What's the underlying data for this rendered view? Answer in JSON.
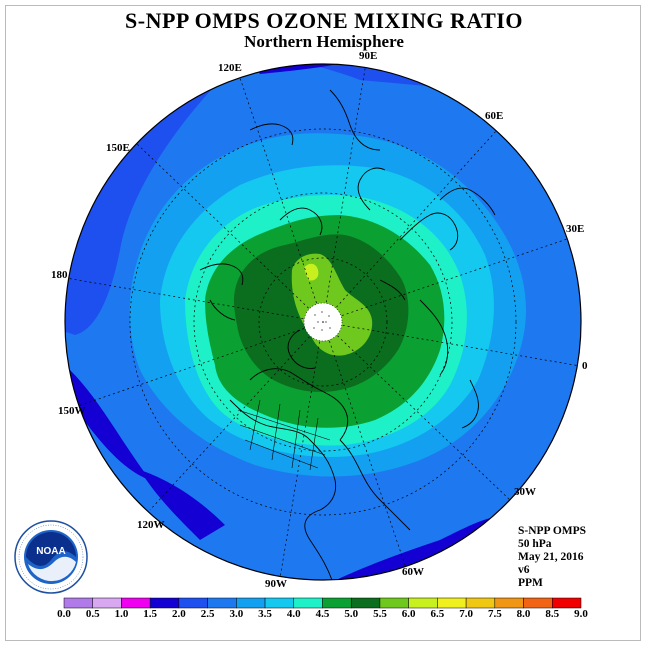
{
  "title": "S-NPP OMPS OZONE MIXING RATIO",
  "subtitle": "Northern Hemisphere",
  "longitude_labels": [
    "90E",
    "60E",
    "30E",
    "0",
    "30W",
    "60W",
    "90W",
    "120W",
    "150W",
    "180",
    "150E",
    "120E"
  ],
  "info": {
    "instrument": "S-NPP OMPS",
    "level": "50 hPa",
    "date": "May 21, 2016",
    "version": "v6",
    "units": "PPM"
  },
  "logo_text": "NOAA",
  "colorbar": {
    "ticks": [
      "0.0",
      "0.5",
      "1.0",
      "1.5",
      "2.0",
      "2.5",
      "3.0",
      "3.5",
      "4.0",
      "4.5",
      "5.0",
      "5.5",
      "6.0",
      "6.5",
      "7.0",
      "7.5",
      "8.0",
      "8.5",
      "9.0"
    ],
    "colors": [
      "#b07ae8",
      "#d8a8f0",
      "#f000f0",
      "#1400d2",
      "#1e50f0",
      "#1e78f0",
      "#14a0f0",
      "#14c8f0",
      "#1ef0c8",
      "#0aa032",
      "#0a6e1e",
      "#6ec81e",
      "#c8f01e",
      "#f0f01e",
      "#f0c814",
      "#f09614",
      "#f06414",
      "#f00000",
      "#82503c"
    ]
  },
  "legend": {
    "min": 0.0,
    "max": 9.0,
    "step": 0.5
  }
}
